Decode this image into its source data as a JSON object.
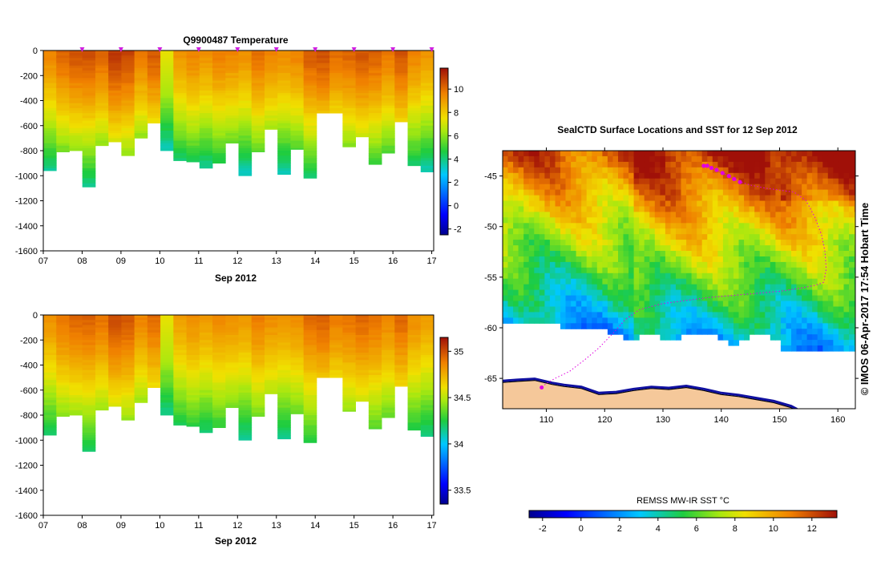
{
  "figure": {
    "credit": "© IMOS 06-Apr-2017 17:54 Hobart Time"
  },
  "chart_data": [
    {
      "type": "heatmap",
      "title": "Q9900487  Temperature",
      "xlabel": "Sep 2012",
      "ylabel": "",
      "x_tick_labels": [
        "07",
        "08",
        "09",
        "10",
        "11",
        "12",
        "13",
        "14",
        "15",
        "16",
        "17"
      ],
      "xlim": [
        7,
        17.05
      ],
      "ylim": [
        -1600,
        0
      ],
      "y_ticks": [
        0,
        -200,
        -400,
        -600,
        -800,
        -1000,
        -1200,
        -1400,
        -1600
      ],
      "colorbar": {
        "min": -2.5,
        "max": 11.8,
        "ticks": [
          10,
          8,
          6,
          4,
          2,
          0,
          -2
        ]
      },
      "variable": "temperature",
      "profile_markers": [
        8,
        9,
        10,
        11,
        12,
        13,
        14,
        15,
        16,
        17
      ]
    },
    {
      "type": "heatmap",
      "title": "",
      "xlabel": "Sep 2012",
      "ylabel": "",
      "x_tick_labels": [
        "07",
        "08",
        "09",
        "10",
        "11",
        "12",
        "13",
        "14",
        "15",
        "16",
        "17"
      ],
      "xlim": [
        7,
        17.05
      ],
      "ylim": [
        -1600,
        0
      ],
      "y_ticks": [
        0,
        -200,
        -400,
        -600,
        -800,
        -1000,
        -1200,
        -1400,
        -1600
      ],
      "colorbar": {
        "min": 33.35,
        "max": 35.15,
        "ticks": [
          35,
          34.5,
          34,
          33.5
        ]
      },
      "variable": "salinity"
    },
    {
      "type": "heatmap",
      "title": "SealCTD Surface Locations and SST for 12 Sep 2012",
      "xlabel": "",
      "ylabel": "",
      "x_ticks": [
        110,
        120,
        130,
        140,
        150,
        160
      ],
      "y_ticks": [
        -45,
        -50,
        -55,
        -60,
        -65
      ],
      "xlim": [
        102.5,
        163
      ],
      "ylim": [
        -68,
        -42.5
      ],
      "colorbar": {
        "label": "REMSS MW-IR SST °C",
        "min": -2.7,
        "max": 13.3,
        "ticks": [
          -2,
          0,
          2,
          4,
          6,
          8,
          10,
          12
        ]
      },
      "track": {
        "lon": [
          137.0,
          137.6,
          138.3,
          139.2,
          140.2,
          141.3,
          142.2,
          143.2,
          145,
          147.5,
          150,
          152.5,
          154.5,
          156,
          157.2,
          157.8,
          158.0,
          157.6,
          156.2,
          153.5,
          150,
          146,
          142,
          138,
          134,
          130,
          126,
          123.5,
          121.5,
          119,
          116.5,
          114,
          111.5,
          110.0,
          109.2
        ],
        "lat": [
          -44.0,
          -44.0,
          -44.2,
          -44.4,
          -44.7,
          -45.0,
          -45.3,
          -45.6,
          -45.9,
          -46.2,
          -46.4,
          -46.6,
          -47.4,
          -49.0,
          -50.8,
          -52.5,
          -54.2,
          -55.5,
          -55.8,
          -56.1,
          -56.4,
          -56.6,
          -56.8,
          -57.0,
          -57.3,
          -57.6,
          -58.2,
          -59.2,
          -60.5,
          -62.0,
          -63.2,
          -64.3,
          -65.0,
          -65.5,
          -65.9
        ]
      }
    }
  ]
}
